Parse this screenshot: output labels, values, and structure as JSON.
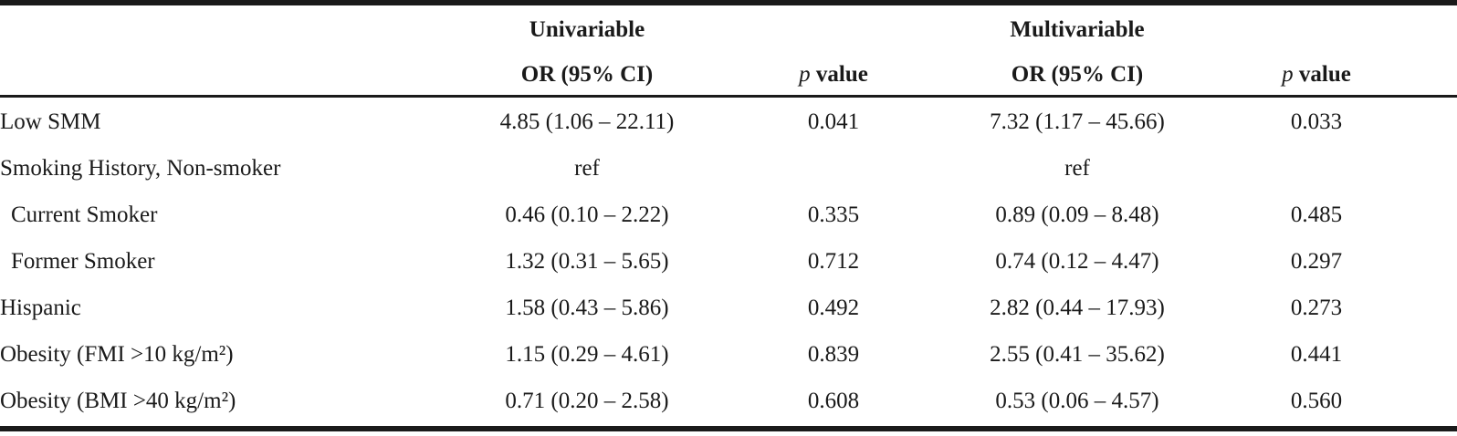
{
  "header": {
    "group_univariable": "Univariable",
    "group_multivariable": "Multivariable",
    "col_or_ci": "OR (95% CI)",
    "col_p_italic": "p",
    "col_p_rest": " value"
  },
  "rows": [
    {
      "label": "Low SMM",
      "uni_or": "4.85 (1.06 – 22.11)",
      "uni_p": "0.041",
      "multi_or": "7.32 (1.17 – 45.66)",
      "multi_p": "0.033"
    },
    {
      "label": "Smoking History, Non-smoker",
      "uni_or": "ref",
      "uni_p": "",
      "multi_or": "ref",
      "multi_p": ""
    },
    {
      "label": "Current Smoker",
      "uni_or": "0.46 (0.10 – 2.22)",
      "uni_p": "0.335",
      "multi_or": "0.89 (0.09 – 8.48)",
      "multi_p": "0.485"
    },
    {
      "label": "Former Smoker",
      "uni_or": "1.32 (0.31 – 5.65)",
      "uni_p": "0.712",
      "multi_or": "0.74 (0.12 – 4.47)",
      "multi_p": "0.297"
    },
    {
      "label": "Hispanic",
      "uni_or": "1.58 (0.43 – 5.86)",
      "uni_p": "0.492",
      "multi_or": "2.82 (0.44 – 17.93)",
      "multi_p": "0.273"
    },
    {
      "label": "Obesity (FMI >10 kg/m²)",
      "uni_or": "1.15 (0.29 – 4.61)",
      "uni_p": "0.839",
      "multi_or": "2.55 (0.41 – 35.62)",
      "multi_p": "0.441"
    },
    {
      "label": "Obesity (BMI >40 kg/m²)",
      "uni_or": "0.71 (0.20 – 2.58)",
      "uni_p": "0.608",
      "multi_or": "0.53 (0.06 – 4.57)",
      "multi_p": "0.560"
    }
  ]
}
